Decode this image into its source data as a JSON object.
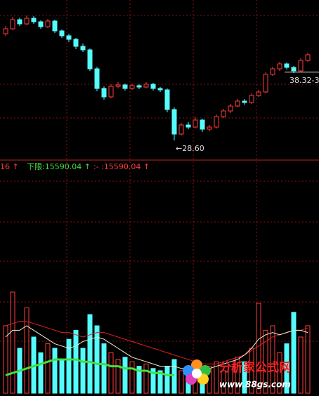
{
  "chart_data": [
    {
      "type": "candlestick",
      "up_color": "#ff3c3c",
      "down_color": "#54fcfc",
      "ylim": [
        25.8,
        48.6
      ],
      "open": [
        43.8,
        44.5,
        45.8,
        45.2,
        46.0,
        45.5,
        44.8,
        45.6,
        44.2,
        43.5,
        43.0,
        42.0,
        41.5,
        38.8,
        36.0,
        34.8,
        36.3,
        36.5,
        36.0,
        36.4,
        36.2,
        36.6,
        36.0,
        35.8,
        33.0,
        29.5,
        30.8,
        30.5,
        31.5,
        30.2,
        30.5,
        32.0,
        32.8,
        33.5,
        34.2,
        34.0,
        35.0,
        35.5,
        38.0,
        38.8,
        39.5,
        39.0,
        38.5,
        40.0
      ],
      "high": [
        44.9,
        46.2,
        46.1,
        46.4,
        46.3,
        45.7,
        45.9,
        45.8,
        44.4,
        43.8,
        43.2,
        42.4,
        41.7,
        39.1,
        36.3,
        36.6,
        36.9,
        36.7,
        36.7,
        36.6,
        36.9,
        36.8,
        36.2,
        36.0,
        33.3,
        31.1,
        31.2,
        31.9,
        31.7,
        30.8,
        32.3,
        33.1,
        33.8,
        34.5,
        34.5,
        35.3,
        35.8,
        38.3,
        39.1,
        39.8,
        39.7,
        39.2,
        40.3,
        41.1
      ],
      "low": [
        43.5,
        44.3,
        44.9,
        45.0,
        45.2,
        44.5,
        44.6,
        43.9,
        43.2,
        42.6,
        41.6,
        41.2,
        38.5,
        35.6,
        34.4,
        34.6,
        36.0,
        35.7,
        35.8,
        35.9,
        36.0,
        35.7,
        35.5,
        32.6,
        28.6,
        29.3,
        30.2,
        30.3,
        29.8,
        29.9,
        30.3,
        31.8,
        32.5,
        33.3,
        33.7,
        33.8,
        34.8,
        35.3,
        37.8,
        38.5,
        38.7,
        38.2,
        38.3,
        39.8
      ],
      "close": [
        44.5,
        45.8,
        45.2,
        46.0,
        45.5,
        44.8,
        45.6,
        44.2,
        43.5,
        43.0,
        42.0,
        41.5,
        38.8,
        36.0,
        34.8,
        36.3,
        36.5,
        36.0,
        36.4,
        36.2,
        36.6,
        36.0,
        35.8,
        33.0,
        29.5,
        30.8,
        30.5,
        31.5,
        30.2,
        30.5,
        32.0,
        32.8,
        33.5,
        34.2,
        34.0,
        35.0,
        35.5,
        38.0,
        38.8,
        39.5,
        39.0,
        38.5,
        40.0,
        40.8
      ],
      "annotations": [
        {
          "value": 28.6,
          "label": "←28.60"
        },
        {
          "value": 38.32,
          "label": "38.32-3"
        }
      ]
    },
    {
      "type": "volume",
      "ylim": [
        0,
        100
      ],
      "values": [
        30,
        45,
        20,
        38,
        25,
        18,
        22,
        20,
        15,
        24,
        28,
        20,
        35,
        30,
        22,
        18,
        15,
        16,
        14,
        12,
        13,
        11,
        10,
        12,
        15,
        10,
        8,
        9,
        10,
        12,
        14,
        10,
        12,
        16,
        14,
        20,
        40,
        28,
        30,
        18,
        22,
        36,
        25,
        30
      ],
      "series": [
        {
          "color": "#e02020",
          "values": [
            30,
            31,
            32,
            32,
            31,
            30,
            29,
            28,
            27,
            27,
            26,
            25,
            26,
            27,
            27,
            26,
            25,
            24,
            23,
            22,
            21,
            20,
            19,
            18,
            17,
            16,
            15,
            14,
            13,
            13,
            13,
            14,
            15,
            16,
            17,
            19,
            21,
            23,
            25,
            26,
            27,
            28,
            28,
            29
          ]
        },
        {
          "color": "#f0f0d0",
          "values": [
            25,
            28,
            28,
            30,
            28,
            26,
            24,
            22,
            21,
            20,
            21,
            23,
            24,
            25,
            24,
            22,
            20,
            18,
            16,
            15,
            14,
            13,
            12,
            12,
            12,
            11,
            11,
            10,
            10,
            11,
            12,
            13,
            14,
            15,
            17,
            20,
            24,
            26,
            27,
            26,
            27,
            28,
            28,
            27
          ]
        },
        {
          "color": "#40e040",
          "values": [
            8,
            9,
            10,
            11,
            12,
            13,
            14,
            15,
            15,
            15,
            15,
            14,
            14,
            13,
            13,
            12,
            12,
            11,
            11,
            10,
            10,
            9,
            9,
            8,
            8,
            null,
            null,
            null,
            null,
            null,
            null,
            null,
            null,
            null,
            null,
            null,
            null,
            null,
            null,
            null,
            null,
            null,
            null,
            null
          ]
        }
      ]
    }
  ],
  "status_bar": {
    "items": [
      {
        "text": "16 ↑",
        "color": "#ff3c3c"
      },
      {
        "text": "下限:15590.04 ↑",
        "color": "#40e040"
      },
      {
        "text": ":- :15590.04 ↑",
        "color": "#ff3c3c"
      }
    ]
  },
  "watermark": {
    "title": "分析家公式网",
    "url": "www.88gs.com"
  }
}
